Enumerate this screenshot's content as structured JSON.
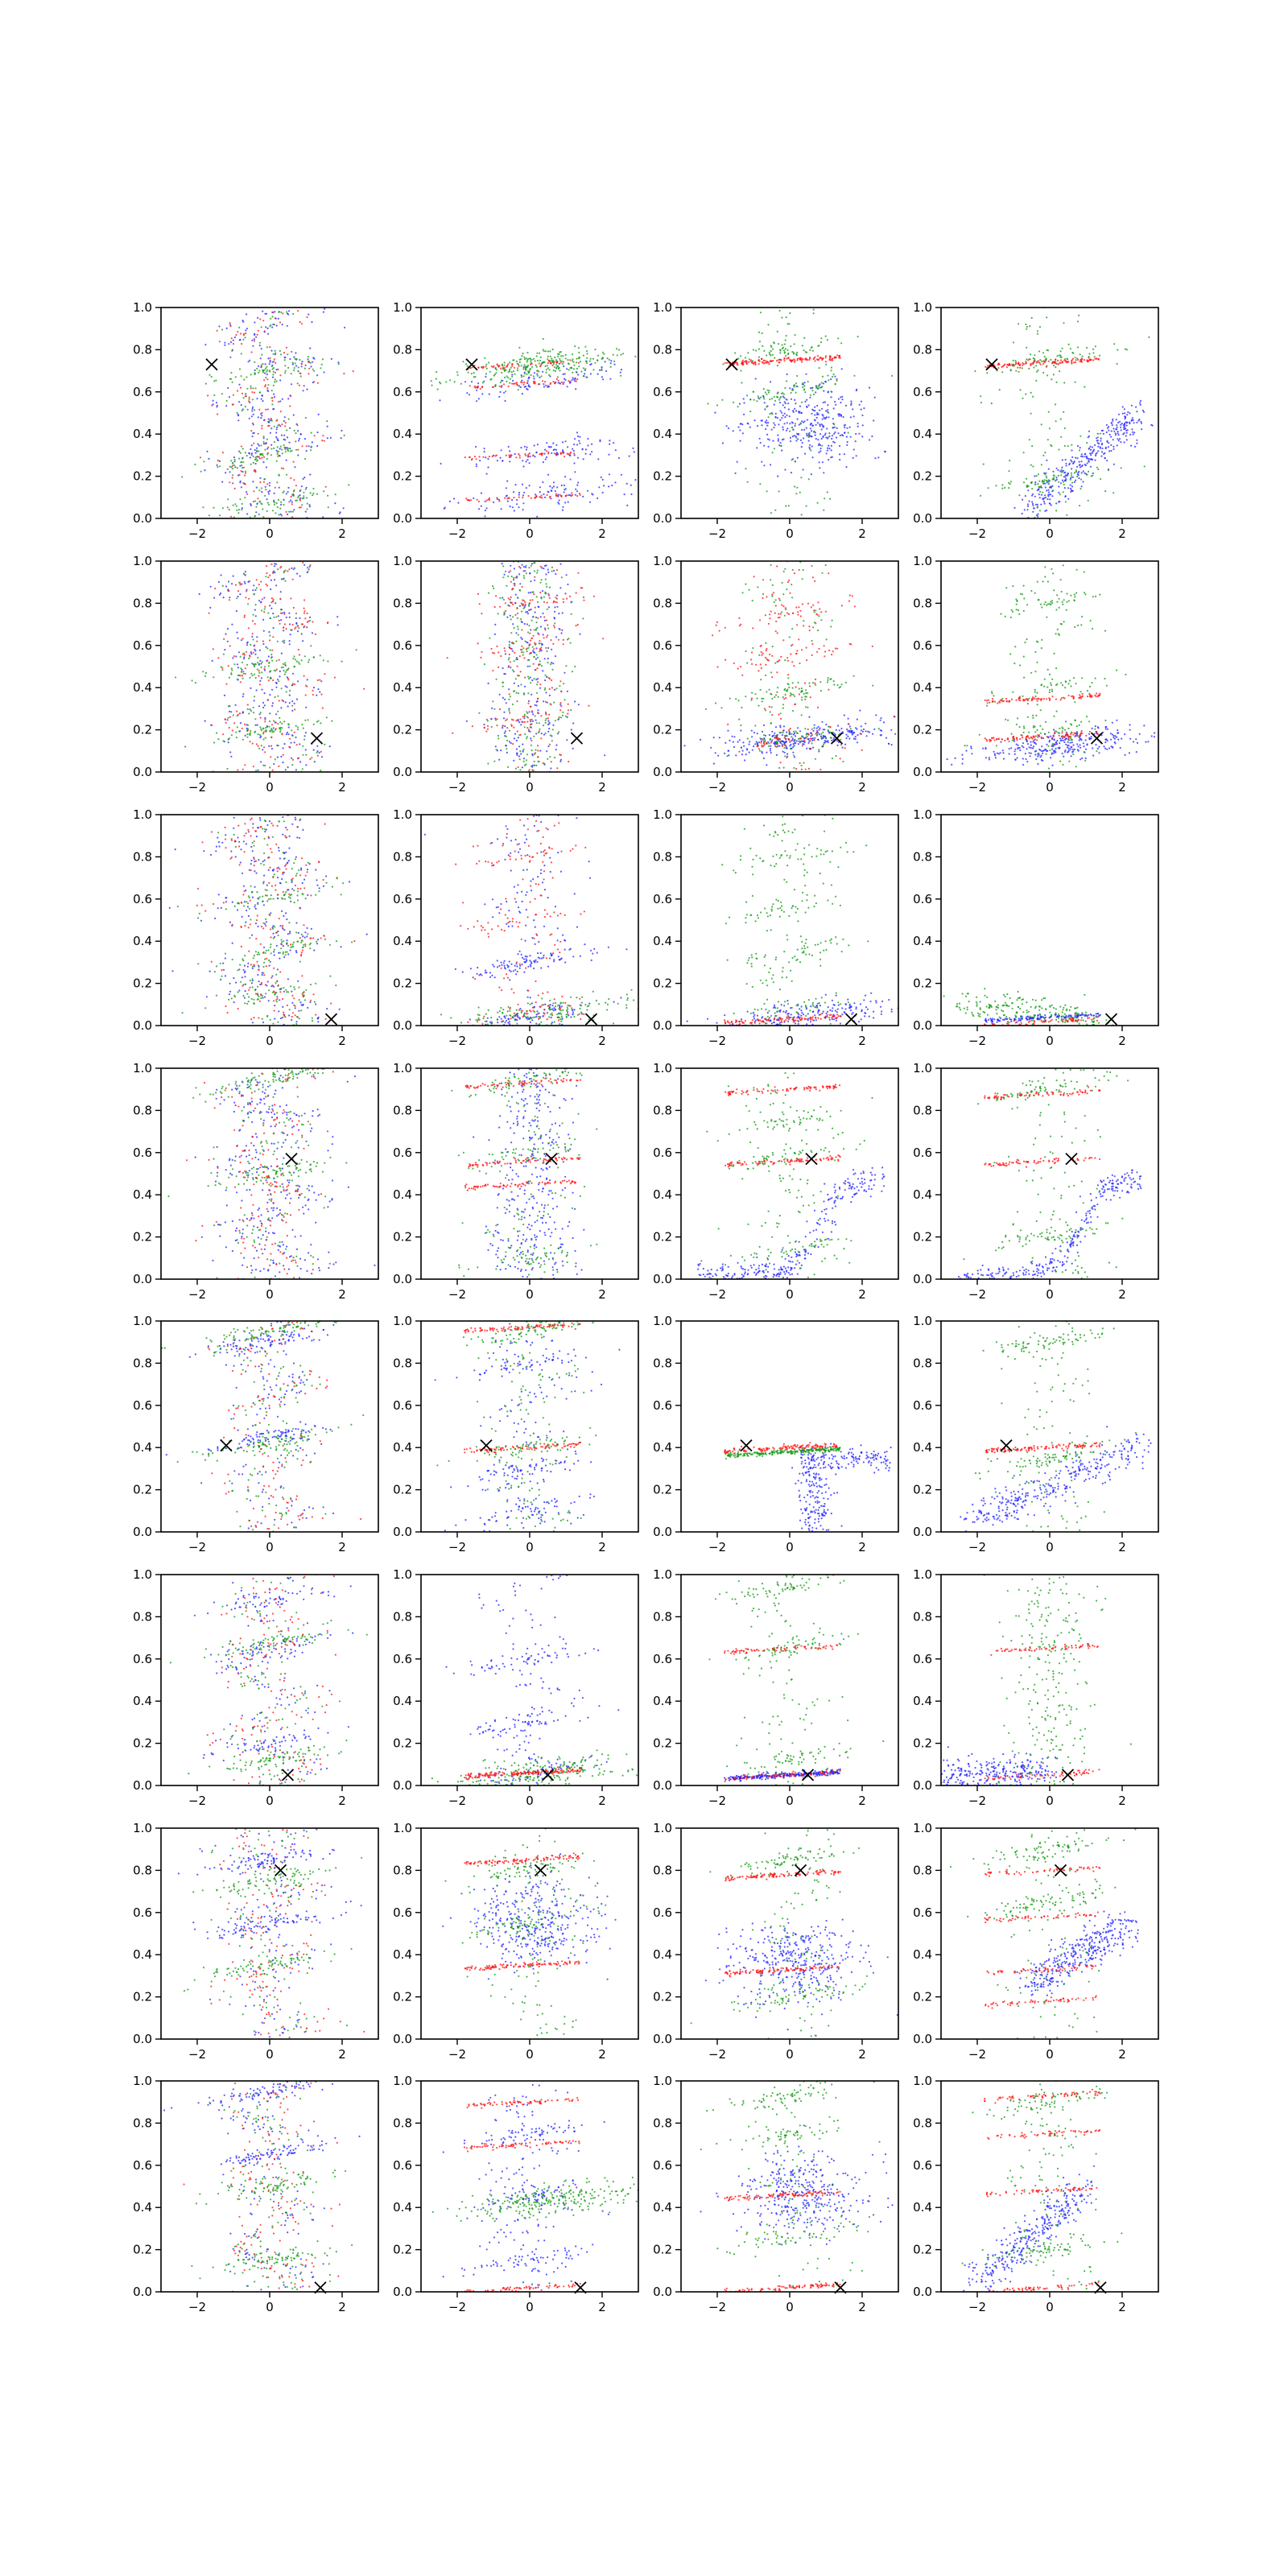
{
  "chart_data": {
    "type": "scatter",
    "grid": false,
    "legend": false,
    "rows": 8,
    "cols": 4,
    "xlim": [
      -3,
      3
    ],
    "ylim": [
      0,
      1
    ],
    "x_ticks": [
      -2,
      0,
      2
    ],
    "x_tick_labels": [
      "−2",
      "0",
      "2"
    ],
    "y_ticks": [
      0.0,
      0.2,
      0.4,
      0.6,
      0.8,
      1.0
    ],
    "y_tick_labels": [
      "0.0",
      "0.2",
      "0.4",
      "0.6",
      "0.8",
      "1.0"
    ],
    "series_colors": {
      "blue": "#2222ff",
      "green": "#119911",
      "red": "#ff1111"
    },
    "marker_color": "#000000",
    "marker_symbol": "x",
    "row_markers": [
      {
        "x": -1.6,
        "y": 0.73
      },
      {
        "x": 1.3,
        "y": 0.16
      },
      {
        "x": 1.7,
        "y": 0.03
      },
      {
        "x": 0.6,
        "y": 0.57
      },
      {
        "x": -1.2,
        "y": 0.41
      },
      {
        "x": 0.5,
        "y": 0.05
      },
      {
        "x": 0.3,
        "y": 0.8
      },
      {
        "x": 1.4,
        "y": 0.02
      }
    ],
    "panels": [
      [
        {
          "blue": {
            "layout": "wave",
            "n": 300
          },
          "green": {
            "layout": "wave_bands",
            "bands": [
              0.08,
              0.3,
              0.7
            ],
            "n": 300
          },
          "red": {
            "layout": "wave",
            "n": 160
          }
        },
        {
          "blue": {
            "layout": "bands",
            "bands": [
              0.1,
              0.3,
              0.65
            ],
            "n": 320
          },
          "green": {
            "layout": "bands",
            "bands": [
              0.72
            ],
            "n": 260
          },
          "red": {
            "layout": "lines",
            "lines": [
              0.73,
              0.64,
              0.3,
              0.1
            ],
            "n": 200
          }
        },
        {
          "blue": {
            "layout": "blob",
            "center": [
              0.5,
              0.45
            ],
            "n": 360
          },
          "green": {
            "layout": "wave_bands",
            "bands": [
              0.8,
              0.6
            ],
            "n": 220
          },
          "red": {
            "layout": "lines",
            "lines": [
              0.75
            ],
            "n": 150
          }
        },
        {
          "blue": {
            "layout": "diagonal",
            "from": [
              -0.5,
              0.05
            ],
            "to": [
              2.5,
              0.5
            ],
            "n": 340
          },
          "green": {
            "layout": "wave_bands",
            "bands": [
              0.18,
              0.75
            ],
            "n": 240
          },
          "red": {
            "layout": "lines",
            "lines": [
              0.74
            ],
            "n": 130
          }
        }
      ],
      [
        {
          "blue": {
            "layout": "wave",
            "n": 260
          },
          "green": {
            "layout": "wave_bands",
            "bands": [
              0.2,
              0.5
            ],
            "n": 260
          },
          "red": {
            "layout": "wave",
            "n": 180
          }
        },
        {
          "blue": {
            "layout": "column",
            "n": 260
          },
          "green": {
            "layout": "column",
            "n": 240
          },
          "red": {
            "layout": "wave_bands",
            "bands": [
              0.8,
              0.6,
              0.25
            ],
            "n": 220
          }
        },
        {
          "blue": {
            "layout": "bands",
            "bands": [
              0.15
            ],
            "n": 300
          },
          "green": {
            "layout": "wave_bands",
            "bands": [
              0.38,
              0.16
            ],
            "n": 240
          },
          "red": {
            "layout": "wave_bands",
            "bands": [
              0.75,
              0.55,
              0.15
            ],
            "n": 220
          }
        },
        {
          "blue": {
            "layout": "bands",
            "bands": [
              0.12
            ],
            "n": 280
          },
          "green": {
            "layout": "wave_bands",
            "bands": [
              0.8,
              0.4,
              0.2
            ],
            "n": 240
          },
          "red": {
            "layout": "lines",
            "lines": [
              0.35,
              0.17
            ],
            "n": 180
          }
        }
      ],
      [
        {
          "blue": {
            "layout": "wave",
            "n": 280
          },
          "green": {
            "layout": "wave_bands",
            "bands": [
              0.15,
              0.35,
              0.6
            ],
            "n": 260
          },
          "red": {
            "layout": "wave",
            "n": 180
          }
        },
        {
          "blue": {
            "layout": "wave_bands",
            "bands": [
              0.3,
              0.05
            ],
            "n": 300
          },
          "green": {
            "layout": "bands",
            "bands": [
              0.05
            ],
            "n": 160
          },
          "red": {
            "layout": "wave_bands",
            "bands": [
              0.8,
              0.5,
              0.06
            ],
            "n": 180
          }
        },
        {
          "blue": {
            "layout": "bands",
            "bands": [
              0.04
            ],
            "n": 220
          },
          "green": {
            "layout": "wave_bands",
            "bands": [
              0.8,
              0.55,
              0.35,
              0.08
            ],
            "n": 260
          },
          "red": {
            "layout": "lines",
            "lines": [
              0.03
            ],
            "n": 100
          }
        },
        {
          "blue": {
            "layout": "lines",
            "lines": [
              0.04
            ],
            "n": 140
          },
          "green": {
            "layout": "diagonal",
            "from": [
              -2.5,
              0.1
            ],
            "to": [
              1.5,
              0.02
            ],
            "n": 220
          },
          "red": {
            "layout": "lines",
            "lines": [
              0.02
            ],
            "n": 60
          }
        }
      ],
      [
        {
          "blue": {
            "layout": "wave",
            "n": 300
          },
          "green": {
            "layout": "wave_bands",
            "bands": [
              0.95,
              0.5
            ],
            "n": 280
          },
          "red": {
            "layout": "wave",
            "n": 160
          }
        },
        {
          "blue": {
            "layout": "column",
            "n": 320
          },
          "green": {
            "layout": "wave_bands",
            "bands": [
              0.95,
              0.6,
              0.1
            ],
            "n": 240
          },
          "red": {
            "layout": "lines",
            "lines": [
              0.93,
              0.56,
              0.45
            ],
            "n": 210
          }
        },
        {
          "blue": {
            "layout": "sshape",
            "n": 300
          },
          "green": {
            "layout": "wave_bands",
            "bands": [
              0.75,
              0.58,
              0.15
            ],
            "n": 240
          },
          "red": {
            "layout": "lines",
            "lines": [
              0.9,
              0.56
            ],
            "n": 170
          }
        },
        {
          "blue": {
            "layout": "sshape",
            "n": 300
          },
          "green": {
            "layout": "wave_bands",
            "bands": [
              0.9,
              0.2
            ],
            "n": 220
          },
          "red": {
            "layout": "lines",
            "lines": [
              0.88,
              0.56
            ],
            "n": 140
          }
        }
      ],
      [
        {
          "blue": {
            "layout": "wave_bands",
            "bands": [
              0.9,
              0.45
            ],
            "n": 300
          },
          "green": {
            "layout": "wave_bands",
            "bands": [
              0.95,
              0.42
            ],
            "n": 280
          },
          "red": {
            "layout": "wave",
            "n": 120
          }
        },
        {
          "blue": {
            "layout": "wave_bands",
            "bands": [
              0.3,
              0.1,
              0.8
            ],
            "n": 300
          },
          "green": {
            "layout": "wave_bands",
            "bands": [
              0.95,
              0.4
            ],
            "n": 260
          },
          "red": {
            "layout": "lines",
            "lines": [
              0.97,
              0.4
            ],
            "n": 160
          }
        },
        {
          "blue": {
            "layout": "tshape",
            "n": 300
          },
          "green": {
            "layout": "lines",
            "lines": [
              0.38
            ],
            "n": 220
          },
          "red": {
            "layout": "lines",
            "lines": [
              0.4
            ],
            "n": 120
          }
        },
        {
          "blue": {
            "layout": "diagonal",
            "from": [
              -2.2,
              0.05
            ],
            "to": [
              2.5,
              0.4
            ],
            "n": 320
          },
          "green": {
            "layout": "wave_bands",
            "bands": [
              0.9,
              0.35
            ],
            "n": 240
          },
          "red": {
            "layout": "lines",
            "lines": [
              0.4
            ],
            "n": 110
          }
        }
      ],
      [
        {
          "blue": {
            "layout": "wave_bands",
            "bands": [
              0.88,
              0.65,
              0.2
            ],
            "n": 280
          },
          "green": {
            "layout": "wave_bands",
            "bands": [
              0.68,
              0.12
            ],
            "n": 260
          },
          "red": {
            "layout": "wave",
            "n": 140
          }
        },
        {
          "blue": {
            "layout": "wave_bands",
            "bands": [
              0.3,
              0.05,
              0.6
            ],
            "n": 280
          },
          "green": {
            "layout": "bands",
            "bands": [
              0.05
            ],
            "n": 220
          },
          "red": {
            "layout": "lines",
            "lines": [
              0.06
            ],
            "n": 150
          }
        },
        {
          "blue": {
            "layout": "lines",
            "lines": [
              0.05
            ],
            "n": 260
          },
          "green": {
            "layout": "wave_bands",
            "bands": [
              0.65,
              0.12,
              0.95
            ],
            "n": 260
          },
          "red": {
            "layout": "lines",
            "lines": [
              0.65,
              0.05
            ],
            "n": 140
          }
        },
        {
          "blue": {
            "layout": "diagonal",
            "from": [
              -3,
              0.04
            ],
            "to": [
              0,
              0.08
            ],
            "n": 260
          },
          "green": {
            "layout": "column",
            "n": 240
          },
          "red": {
            "layout": "lines",
            "lines": [
              0.65,
              0.05
            ],
            "n": 120
          }
        }
      ],
      [
        {
          "blue": {
            "layout": "wave_bands",
            "bands": [
              0.85,
              0.55
            ],
            "n": 300
          },
          "green": {
            "layout": "wave_bands",
            "bands": [
              0.35,
              0.75
            ],
            "n": 260
          },
          "red": {
            "layout": "wave",
            "n": 140
          }
        },
        {
          "blue": {
            "layout": "blob",
            "center": [
              0.2,
              0.55
            ],
            "n": 360
          },
          "green": {
            "layout": "wave_bands",
            "bands": [
              0.8,
              0.55
            ],
            "n": 240
          },
          "red": {
            "layout": "lines",
            "lines": [
              0.85,
              0.35
            ],
            "n": 200
          }
        },
        {
          "blue": {
            "layout": "blob",
            "center": [
              0.2,
              0.38
            ],
            "n": 360
          },
          "green": {
            "layout": "wave_bands",
            "bands": [
              0.85,
              0.2
            ],
            "n": 240
          },
          "red": {
            "layout": "lines",
            "lines": [
              0.78,
              0.33
            ],
            "n": 200
          }
        },
        {
          "blue": {
            "layout": "diagonal",
            "from": [
              -0.5,
              0.25
            ],
            "to": [
              2.2,
              0.55
            ],
            "n": 340
          },
          "green": {
            "layout": "wave_bands",
            "bands": [
              0.65,
              0.9
            ],
            "n": 240
          },
          "red": {
            "layout": "lines",
            "lines": [
              0.8,
              0.58,
              0.33,
              0.18
            ],
            "n": 220
          }
        }
      ],
      [
        {
          "blue": {
            "layout": "wave_bands",
            "bands": [
              0.95,
              0.65
            ],
            "n": 300
          },
          "green": {
            "layout": "wave_bands",
            "bands": [
              0.5,
              0.15
            ],
            "n": 260
          },
          "red": {
            "layout": "wave",
            "n": 140
          }
        },
        {
          "blue": {
            "layout": "wave_bands",
            "bands": [
              0.75,
              0.45,
              0.15
            ],
            "n": 320
          },
          "green": {
            "layout": "bands",
            "bands": [
              0.42
            ],
            "n": 240
          },
          "red": {
            "layout": "lines",
            "lines": [
              0.9,
              0.7,
              0.02
            ],
            "n": 200
          }
        },
        {
          "blue": {
            "layout": "blob",
            "center": [
              0.4,
              0.47
            ],
            "n": 340
          },
          "green": {
            "layout": "wave_bands",
            "bands": [
              0.93,
              0.75,
              0.25
            ],
            "n": 260
          },
          "red": {
            "layout": "lines",
            "lines": [
              0.46,
              0.02
            ],
            "n": 180
          }
        },
        {
          "blue": {
            "layout": "diagonal",
            "from": [
              -2,
              0.05
            ],
            "to": [
              1.0,
              0.5
            ],
            "n": 320
          },
          "green": {
            "layout": "wave_bands",
            "bands": [
              0.9,
              0.2
            ],
            "n": 240
          },
          "red": {
            "layout": "lines",
            "lines": [
              0.93,
              0.75,
              0.48,
              0.02
            ],
            "n": 220
          }
        }
      ]
    ]
  }
}
